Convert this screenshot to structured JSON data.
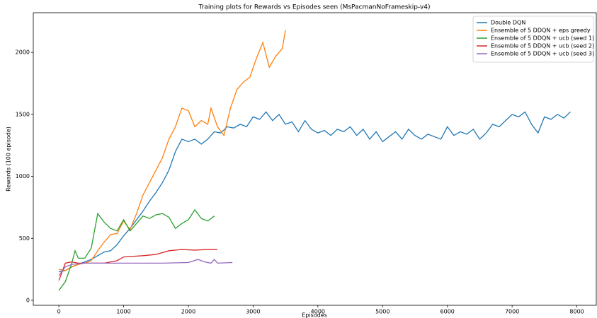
{
  "chart_data": {
    "type": "line",
    "title": "Training plots for Rewards vs Episodes seen (MsPacmanNoFrameskip-v4)",
    "x_label": "Episodes",
    "y_label": "Rewards (100 episode)",
    "xlim": [
      -395,
      8300
    ],
    "ylim": [
      -40,
      2320
    ],
    "xticks": [
      0,
      1000,
      2000,
      3000,
      4000,
      5000,
      6000,
      7000,
      8000
    ],
    "yticks": [
      0,
      500,
      1000,
      1500,
      2000
    ],
    "legend": "upper right",
    "series": [
      {
        "name": "Double DQN",
        "color": "#1f77b4",
        "x": [
          0,
          100,
          200,
          300,
          400,
          500,
          600,
          700,
          800,
          900,
          1000,
          1100,
          1200,
          1300,
          1400,
          1500,
          1600,
          1700,
          1800,
          1900,
          2000,
          2100,
          2200,
          2300,
          2400,
          2500,
          2600,
          2700,
          2800,
          2900,
          3000,
          3100,
          3200,
          3300,
          3400,
          3500,
          3600,
          3700,
          3800,
          3900,
          4000,
          4100,
          4200,
          4300,
          4400,
          4500,
          4600,
          4700,
          4800,
          4900,
          5000,
          5100,
          5200,
          5300,
          5400,
          5500,
          5600,
          5700,
          5800,
          5900,
          6000,
          6100,
          6200,
          6300,
          6400,
          6500,
          6600,
          6700,
          6800,
          6900,
          7000,
          7100,
          7200,
          7300,
          7400,
          7500,
          7600,
          7700,
          7800,
          7900
        ],
        "values": [
          230,
          240,
          270,
          290,
          310,
          330,
          360,
          390,
          400,
          450,
          520,
          580,
          650,
          720,
          800,
          870,
          950,
          1050,
          1200,
          1300,
          1280,
          1300,
          1260,
          1300,
          1360,
          1350,
          1400,
          1390,
          1420,
          1400,
          1480,
          1460,
          1520,
          1450,
          1500,
          1420,
          1440,
          1360,
          1450,
          1380,
          1350,
          1370,
          1330,
          1380,
          1360,
          1400,
          1330,
          1380,
          1300,
          1360,
          1280,
          1320,
          1360,
          1300,
          1380,
          1330,
          1300,
          1340,
          1320,
          1300,
          1400,
          1330,
          1360,
          1340,
          1380,
          1300,
          1350,
          1420,
          1400,
          1450,
          1500,
          1480,
          1520,
          1420,
          1350,
          1480,
          1460,
          1500,
          1470,
          1520
        ]
      },
      {
        "name": "Ensemble of 5 DDQN + eps greedy",
        "color": "#ff7f0e",
        "x": [
          0,
          100,
          200,
          300,
          400,
          500,
          600,
          700,
          800,
          900,
          1000,
          1100,
          1200,
          1300,
          1400,
          1500,
          1600,
          1700,
          1800,
          1900,
          2000,
          2100,
          2200,
          2300,
          2350,
          2450,
          2550,
          2650,
          2750,
          2850,
          2950,
          3050,
          3150,
          3250,
          3350,
          3450,
          3500
        ],
        "values": [
          250,
          240,
          270,
          290,
          300,
          320,
          400,
          470,
          530,
          540,
          640,
          570,
          700,
          850,
          950,
          1050,
          1150,
          1300,
          1400,
          1550,
          1530,
          1400,
          1450,
          1420,
          1550,
          1400,
          1330,
          1550,
          1700,
          1760,
          1800,
          1950,
          2080,
          1880,
          1970,
          2030,
          2180
        ]
      },
      {
        "name": "Ensemble of 5 DDQN + ucb (seed 1)",
        "color": "#2ca02c",
        "x": [
          0,
          100,
          200,
          250,
          300,
          400,
          500,
          600,
          700,
          800,
          900,
          1000,
          1100,
          1200,
          1300,
          1400,
          1500,
          1600,
          1700,
          1800,
          1900,
          2000,
          2100,
          2200,
          2300,
          2400
        ],
        "values": [
          80,
          150,
          300,
          400,
          340,
          340,
          420,
          700,
          630,
          580,
          560,
          650,
          560,
          620,
          680,
          660,
          690,
          700,
          670,
          580,
          620,
          650,
          730,
          660,
          640,
          680
        ]
      },
      {
        "name": "Ensemble of 5 DDQN + ucb (seed 2)",
        "color": "#d62728",
        "x": [
          0,
          100,
          200,
          300,
          500,
          700,
          900,
          1000,
          1300,
          1500,
          1700,
          1900,
          2100,
          2300,
          2450
        ],
        "values": [
          160,
          300,
          310,
          300,
          300,
          300,
          320,
          350,
          360,
          370,
          400,
          410,
          405,
          410,
          410
        ]
      },
      {
        "name": "Ensemble of 5 DDQN + ucb (seed 3)",
        "color": "#9467bd",
        "x": [
          0,
          100,
          200,
          400,
          800,
          1200,
          1600,
          2000,
          2150,
          2250,
          2350,
          2400,
          2450,
          2680
        ],
        "values": [
          200,
          270,
          290,
          300,
          300,
          300,
          300,
          305,
          330,
          310,
          300,
          330,
          300,
          305
        ]
      }
    ]
  }
}
